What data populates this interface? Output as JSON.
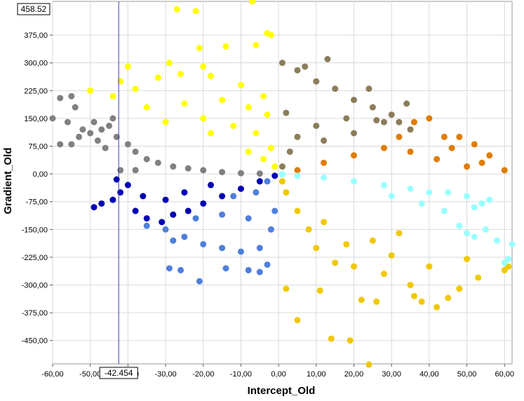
{
  "chart_data": {
    "type": "scatter",
    "xlabel": "Intercept_Old",
    "ylabel": "Gradient_Old",
    "xlim": [
      -60,
      62
    ],
    "ylim": [
      -513,
      466
    ],
    "grid": true,
    "x_ticks": [
      "-60,00",
      "-50,00",
      "-40,00",
      "-30,00",
      "-20,00",
      "-10,00",
      "0,00",
      "10,00",
      "20,00",
      "30,00",
      "40,00",
      "50,00",
      "60,00"
    ],
    "y_ticks": [
      "375,00",
      "300,00",
      "225,00",
      "150,00",
      "75,00",
      "0,00",
      "-75,00",
      "-150,00",
      "-225,00",
      "-300,00",
      "-375,00",
      "-450,00"
    ],
    "crosshair": {
      "x": -42.454,
      "y": 458.52,
      "x_label": "-42.454",
      "y_label": "458.52",
      "color": "#3b3bb0"
    },
    "series": [
      {
        "color": "#ffff00",
        "points": [
          [
            -27,
            445
          ],
          [
            -22,
            440
          ],
          [
            -7,
            466
          ],
          [
            -21,
            340
          ],
          [
            -14,
            345
          ],
          [
            -6,
            348
          ],
          [
            -29,
            300
          ],
          [
            -20,
            290
          ],
          [
            -40,
            290
          ],
          [
            -42,
            250
          ],
          [
            -50,
            225
          ],
          [
            -44,
            210
          ],
          [
            -38,
            230
          ],
          [
            -32,
            260
          ],
          [
            -26,
            270
          ],
          [
            -18,
            265
          ],
          [
            -10,
            240
          ],
          [
            -4,
            210
          ],
          [
            -35,
            180
          ],
          [
            -25,
            190
          ],
          [
            -15,
            200
          ],
          [
            -8,
            180
          ],
          [
            -3,
            160
          ],
          [
            -30,
            140
          ],
          [
            -20,
            150
          ],
          [
            -12,
            130
          ],
          [
            -6,
            110
          ],
          [
            -2,
            70
          ],
          [
            -18,
            110
          ],
          [
            -8,
            60
          ],
          [
            -4,
            40
          ],
          [
            -1,
            20
          ],
          [
            -2,
            375
          ],
          [
            -3,
            380
          ]
        ]
      },
      {
        "color": "#8b7d5b",
        "points": [
          [
            2,
            165
          ],
          [
            5,
            280
          ],
          [
            7,
            290
          ],
          [
            1,
            300
          ],
          [
            13,
            310
          ],
          [
            10,
            250
          ],
          [
            15,
            230
          ],
          [
            20,
            200
          ],
          [
            25,
            180
          ],
          [
            30,
            160
          ],
          [
            32,
            140
          ],
          [
            35,
            120
          ],
          [
            28,
            140
          ],
          [
            18,
            150
          ],
          [
            10,
            130
          ],
          [
            5,
            100
          ],
          [
            3,
            60
          ],
          [
            12,
            90
          ],
          [
            20,
            110
          ],
          [
            1,
            20
          ],
          [
            24,
            230
          ],
          [
            34,
            190
          ],
          [
            26,
            145
          ]
        ]
      },
      {
        "color": "#e07c00",
        "points": [
          [
            36,
            140
          ],
          [
            40,
            150
          ],
          [
            44,
            100
          ],
          [
            48,
            100
          ],
          [
            52,
            80
          ],
          [
            56,
            50
          ],
          [
            60,
            10
          ],
          [
            50,
            20
          ],
          [
            42,
            40
          ],
          [
            35,
            60
          ],
          [
            28,
            70
          ],
          [
            20,
            50
          ],
          [
            12,
            30
          ],
          [
            5,
            10
          ],
          [
            32,
            100
          ],
          [
            46,
            70
          ],
          [
            54,
            30
          ]
        ]
      },
      {
        "color": "#808080",
        "points": [
          [
            -60,
            150
          ],
          [
            -58,
            205
          ],
          [
            -55,
            210
          ],
          [
            -54,
            180
          ],
          [
            -56,
            140
          ],
          [
            -52,
            120
          ],
          [
            -58,
            80
          ],
          [
            -55,
            80
          ],
          [
            -50,
            110
          ],
          [
            -47,
            120
          ],
          [
            -45,
            130
          ],
          [
            -43,
            100
          ],
          [
            -40,
            80
          ],
          [
            -38,
            60
          ],
          [
            -35,
            40
          ],
          [
            -32,
            30
          ],
          [
            -28,
            20
          ],
          [
            -24,
            15
          ],
          [
            -20,
            10
          ],
          [
            -15,
            5
          ],
          [
            -10,
            2
          ],
          [
            -5,
            1
          ],
          [
            -48,
            90
          ],
          [
            -44,
            150
          ],
          [
            -49,
            140
          ],
          [
            -53,
            100
          ],
          [
            -46,
            70
          ],
          [
            -42,
            10
          ],
          [
            -38,
            10
          ]
        ]
      },
      {
        "color": "#0000b4",
        "points": [
          [
            -49,
            -90
          ],
          [
            -47,
            -80
          ],
          [
            -44,
            -70
          ],
          [
            -43,
            -15
          ],
          [
            -40,
            -30
          ],
          [
            -38,
            -100
          ],
          [
            -35,
            -120
          ],
          [
            -31,
            -130
          ],
          [
            -28,
            -110
          ],
          [
            -24,
            -100
          ],
          [
            -20,
            -80
          ],
          [
            -15,
            -60
          ],
          [
            -10,
            -40
          ],
          [
            -5,
            -20
          ],
          [
            -1,
            -5
          ],
          [
            -30,
            -70
          ],
          [
            -25,
            -50
          ],
          [
            -18,
            -30
          ],
          [
            -36,
            -60
          ],
          [
            -42,
            -50
          ]
        ]
      },
      {
        "color": "#4f7fdc",
        "points": [
          [
            -29,
            -255
          ],
          [
            -26,
            -260
          ],
          [
            -21,
            -290
          ],
          [
            -14,
            -255
          ],
          [
            -8,
            -260
          ],
          [
            -5,
            -265
          ],
          [
            -3,
            -245
          ],
          [
            -30,
            -150
          ],
          [
            -25,
            -170
          ],
          [
            -20,
            -190
          ],
          [
            -15,
            -200
          ],
          [
            -10,
            -210
          ],
          [
            -5,
            -200
          ],
          [
            -2,
            -150
          ],
          [
            -1,
            -100
          ],
          [
            -8,
            -120
          ],
          [
            -15,
            -110
          ],
          [
            -22,
            -120
          ],
          [
            -12,
            -60
          ],
          [
            -6,
            -50
          ],
          [
            -3,
            -20
          ],
          [
            -35,
            -140
          ],
          [
            -28,
            -180
          ]
        ]
      },
      {
        "color": "#f0c800",
        "points": [
          [
            2,
            -310
          ],
          [
            5,
            -395
          ],
          [
            11,
            -315
          ],
          [
            14,
            -445
          ],
          [
            19,
            -450
          ],
          [
            24,
            -515
          ],
          [
            22,
            -340
          ],
          [
            26,
            -345
          ],
          [
            28,
            -270
          ],
          [
            35,
            -300
          ],
          [
            36,
            -330
          ],
          [
            38,
            -345
          ],
          [
            42,
            -360
          ],
          [
            45,
            -335
          ],
          [
            48,
            -310
          ],
          [
            50,
            -230
          ],
          [
            53,
            -280
          ],
          [
            60,
            -260
          ],
          [
            61,
            -250
          ],
          [
            10,
            -200
          ],
          [
            15,
            -240
          ],
          [
            20,
            -250
          ],
          [
            30,
            -220
          ],
          [
            40,
            -250
          ],
          [
            8,
            -150
          ],
          [
            5,
            -100
          ],
          [
            2,
            -50
          ],
          [
            1,
            -20
          ],
          [
            18,
            -190
          ],
          [
            25,
            -180
          ],
          [
            32,
            -160
          ],
          [
            12,
            -130
          ]
        ]
      },
      {
        "color": "#99ffff",
        "points": [
          [
            62,
            -190
          ],
          [
            61,
            -230
          ],
          [
            60,
            -240
          ],
          [
            58,
            -180
          ],
          [
            55,
            -150
          ],
          [
            52,
            -170
          ],
          [
            50,
            -160
          ],
          [
            48,
            -140
          ],
          [
            52,
            -90
          ],
          [
            54,
            -80
          ],
          [
            56,
            -70
          ],
          [
            50,
            -60
          ],
          [
            45,
            -50
          ],
          [
            40,
            -50
          ],
          [
            35,
            -40
          ],
          [
            28,
            -30
          ],
          [
            20,
            -20
          ],
          [
            12,
            -10
          ],
          [
            5,
            -5
          ],
          [
            1,
            -1
          ],
          [
            44,
            -100
          ],
          [
            38,
            -80
          ],
          [
            30,
            -60
          ]
        ]
      }
    ]
  }
}
